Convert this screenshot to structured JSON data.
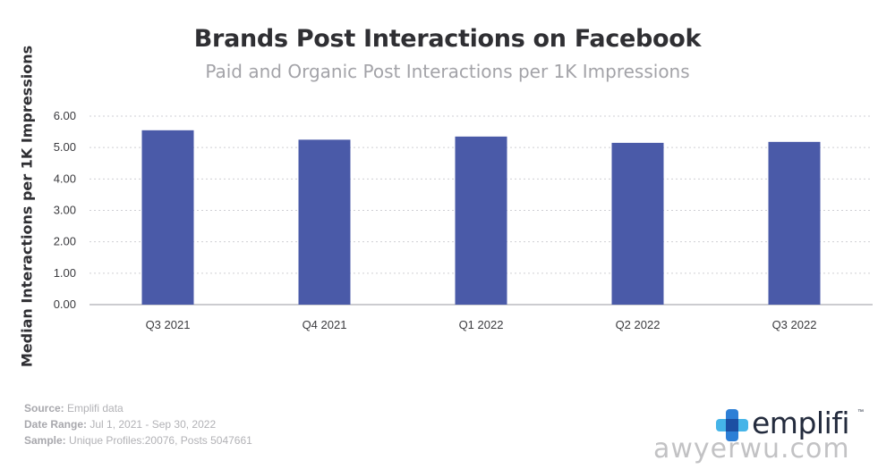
{
  "chart_data": {
    "type": "bar",
    "title": "Brands Post Interactions on Facebook",
    "subtitle": "Paid and Organic Post Interactions per 1K Impressions",
    "ylabel": "Median Interactions per 1K Impressions",
    "xlabel": "",
    "categories": [
      "Q3 2021",
      "Q4 2021",
      "Q1 2022",
      "Q2 2022",
      "Q3 2022"
    ],
    "values": [
      5.55,
      5.25,
      5.35,
      5.15,
      5.18
    ],
    "ylim": [
      0,
      6
    ],
    "yticks": [
      "0.00",
      "1.00",
      "2.00",
      "3.00",
      "4.00",
      "5.00",
      "6.00"
    ],
    "grid": true,
    "bar_color": "#4a5aa8",
    "grid_color": "#cfcfd4",
    "axis_color": "#9a9aa0"
  },
  "footnotes": {
    "source_label": "Source:",
    "source_value": " Emplifi data",
    "date_label": "Date Range:",
    "date_value": " Jul 1, 2021 - Sep 30, 2022",
    "sample_label": "Sample:",
    "sample_value": " Unique Profiles:20076, Posts 5047661"
  },
  "logo": {
    "text": "emplifi",
    "icon": "emplifi-cross-icon",
    "mark": "™"
  },
  "watermark": "awyerwu.com"
}
